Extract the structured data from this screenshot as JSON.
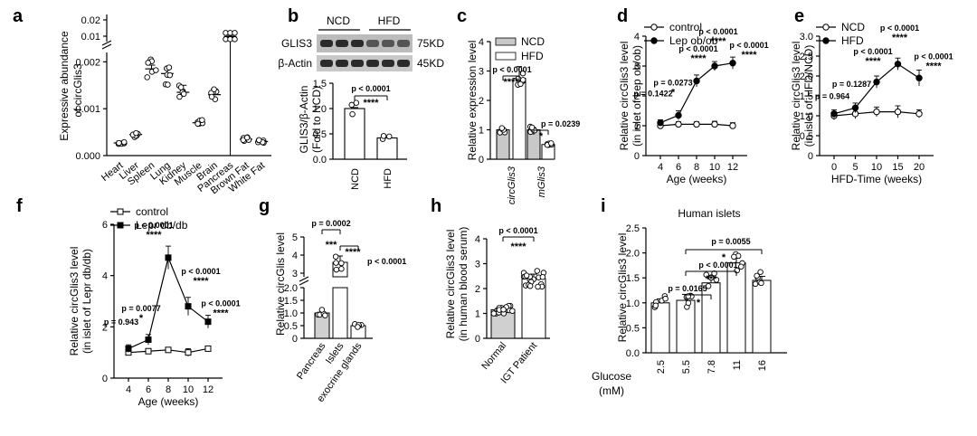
{
  "chart_data": [
    {
      "panel": "a",
      "type": "bar",
      "ylabel": [
        "Expressive abundance",
        "of circGlis3"
      ],
      "categories": [
        "Heart",
        "Liver",
        "Spleen",
        "Lung",
        "Kidney",
        "Muscle",
        "Brain",
        "Pancreas",
        "Brown Fat",
        "White Fat"
      ],
      "values": [
        0.00027,
        0.00045,
        0.00185,
        0.00175,
        0.00135,
        0.0007,
        0.0013,
        0.0098,
        0.00035,
        0.0003
      ],
      "errors": [
        4e-05,
        5e-05,
        8e-05,
        0.0001,
        0.00015,
        4e-05,
        0.00012,
        0.0003,
        5e-05,
        4e-05
      ],
      "yticks_lower": [
        "0.000",
        "0.001",
        "0.002"
      ],
      "yticks_upper": [
        "0.01",
        "0.02"
      ]
    },
    {
      "panel": "b",
      "type": "bar",
      "blot": {
        "groups": [
          "NCD",
          "HFD"
        ],
        "rows": [
          "GLIS3",
          "β-Actin"
        ],
        "sizes": [
          "75KD",
          "45KD"
        ]
      },
      "ylabel": [
        "GLIS3/β-Actin",
        "(Fold to NCD)"
      ],
      "categories": [
        "NCD",
        "HFD"
      ],
      "values": [
        1.0,
        0.42
      ],
      "errors": [
        0.02,
        0.03
      ],
      "ylim": [
        0,
        1.5
      ],
      "yticks": [
        "0.0",
        "0.5",
        "1.0",
        "1.5"
      ],
      "pvalue": "p < 0.0001",
      "stars": "****"
    },
    {
      "panel": "c",
      "type": "bar",
      "ylabel": "Relative expression level",
      "legend": [
        "NCD",
        "HFD"
      ],
      "categories": [
        "circGlis3",
        "mGlis3"
      ],
      "series": [
        {
          "name": "NCD",
          "values": [
            1.0,
            1.0
          ],
          "errors": [
            0.05,
            0.05
          ]
        },
        {
          "name": "HFD",
          "values": [
            2.75,
            0.5
          ],
          "errors": [
            0.4,
            0.08
          ]
        }
      ],
      "ylim": [
        0,
        4
      ],
      "yticks": [
        "0",
        "1",
        "2",
        "3",
        "4"
      ],
      "pvalues": [
        "p < 0.0001",
        "p = 0.0239"
      ],
      "stars": [
        "****",
        "*"
      ]
    },
    {
      "panel": "d",
      "type": "line",
      "ylabel": [
        "Relative circGlis3 level",
        "(in islet of Lep ob/ob)"
      ],
      "xlabel": "Age (weeks)",
      "legend": [
        "control",
        "Lep ob/ob"
      ],
      "x": [
        4,
        6,
        8,
        10,
        12
      ],
      "series": [
        {
          "name": "control",
          "values": [
            1.0,
            1.05,
            1.05,
            1.05,
            1.0
          ],
          "errors": [
            0.08,
            0.08,
            0.08,
            0.1,
            0.1
          ]
        },
        {
          "name": "Lep ob/ob",
          "values": [
            1.1,
            1.35,
            2.5,
            3.0,
            3.1
          ],
          "errors": [
            0.1,
            0.15,
            0.2,
            0.15,
            0.2
          ]
        }
      ],
      "ylim": [
        0,
        4
      ],
      "yticks": [
        "0",
        "1",
        "2",
        "3",
        "4"
      ],
      "pvalues": [
        "p = 0.1422",
        "p = 0.0273",
        "p < 0.0001",
        "p < 0.0001",
        "p < 0.0001"
      ],
      "stars": [
        "",
        "*",
        "****",
        "****",
        "****"
      ]
    },
    {
      "panel": "e",
      "type": "line",
      "ylabel": [
        "Relative circGlis3 level",
        "(in islet of HFD/NCD)"
      ],
      "xlabel": "HFD-Time (weeks)",
      "legend": [
        "NCD",
        "HFD"
      ],
      "x": [
        0,
        5,
        10,
        15,
        20
      ],
      "series": [
        {
          "name": "NCD",
          "values": [
            1.0,
            1.05,
            1.1,
            1.1,
            1.05
          ],
          "errors": [
            0.1,
            0.12,
            0.12,
            0.15,
            0.1
          ]
        },
        {
          "name": "HFD",
          "values": [
            1.05,
            1.2,
            1.85,
            2.3,
            1.95
          ],
          "errors": [
            0.1,
            0.12,
            0.15,
            0.15,
            0.2
          ]
        }
      ],
      "ylim": [
        0,
        3
      ],
      "yticks": [
        "0",
        "0.5",
        "1.0",
        "1.5",
        "2.0",
        "2.5",
        "3.0"
      ],
      "pvalues": [
        "p = 0.964",
        "p = 0.1287",
        "p < 0.0001",
        "p < 0.0001",
        "p < 0.0001"
      ],
      "stars": [
        "",
        "",
        "****",
        "****",
        "****"
      ]
    },
    {
      "panel": "f",
      "type": "line",
      "ylabel": [
        "Relative circGlis3 level",
        "(in islet of Lepr db/db)"
      ],
      "xlabel": "Age (weeks)",
      "legend": [
        "control",
        "Lepr db/db"
      ],
      "x": [
        4,
        6,
        8,
        10,
        12
      ],
      "series": [
        {
          "name": "control",
          "values": [
            1.0,
            1.05,
            1.1,
            1.0,
            1.15
          ],
          "errors": [
            0.1,
            0.1,
            0.1,
            0.15,
            0.1
          ]
        },
        {
          "name": "Lepr db/db",
          "values": [
            1.15,
            1.5,
            4.7,
            2.8,
            2.2
          ],
          "errors": [
            0.15,
            0.2,
            0.45,
            0.35,
            0.25
          ]
        }
      ],
      "ylim": [
        0,
        6
      ],
      "yticks": [
        "0",
        "2",
        "4",
        "6"
      ],
      "pvalues": [
        "p = 0.943",
        "p = 0.0077",
        "p < 0.0001",
        "p < 0.0001",
        "p < 0.0001"
      ],
      "stars": [
        "",
        "*",
        "****",
        "****",
        "****"
      ]
    },
    {
      "panel": "g",
      "type": "bar",
      "ylabel": "Relative circGlis level",
      "categories": [
        "Pancreas",
        "Islets",
        "exocrine glands"
      ],
      "values": [
        1.0,
        3.6,
        0.5
      ],
      "errors": [
        0.05,
        0.35,
        0.05
      ],
      "yticks_lower": [
        "0",
        "0.5",
        "1.0",
        "1.5",
        "2.0"
      ],
      "yticks_upper": [
        "3",
        "4",
        "5"
      ],
      "pvalues": [
        "p = 0.0002",
        "p < 0.0001"
      ],
      "stars": [
        "***",
        "****"
      ]
    },
    {
      "panel": "h",
      "type": "bar",
      "ylabel": [
        "Relative circGlis3 level",
        "(in human blood serum)"
      ],
      "categories": [
        "Normal",
        "IGT Patient"
      ],
      "values": [
        1.15,
        2.4
      ],
      "errors": [
        0.08,
        0.18
      ],
      "ylim": [
        0,
        4
      ],
      "yticks": [
        "0",
        "1",
        "2",
        "3",
        "4"
      ],
      "pvalue": "p < 0.0001",
      "stars": "****"
    },
    {
      "panel": "i",
      "type": "bar",
      "title": "Human islets",
      "ylabel": "Relative circGlis3 level",
      "xlabel": [
        "Glucose",
        "(mM)"
      ],
      "categories": [
        "2.5",
        "5.5",
        "7.8",
        "11",
        "16"
      ],
      "values": [
        1.0,
        1.05,
        1.4,
        1.8,
        1.45
      ],
      "errors": [
        0.08,
        0.12,
        0.08,
        0.1,
        0.08
      ],
      "ylim": [
        0,
        2.5
      ],
      "yticks": [
        "0.0",
        "0.5",
        "1.0",
        "1.5",
        "2.0",
        "2.5"
      ],
      "pvalues": [
        "p = 0.0165",
        "p < 0.0001",
        "p = 0.0055"
      ],
      "stars": [
        "*",
        "***",
        "*"
      ]
    }
  ],
  "labels": {
    "a": "a",
    "b": "b",
    "c": "c",
    "d": "d",
    "e": "e",
    "f": "f",
    "g": "g",
    "h": "h",
    "i": "i"
  }
}
